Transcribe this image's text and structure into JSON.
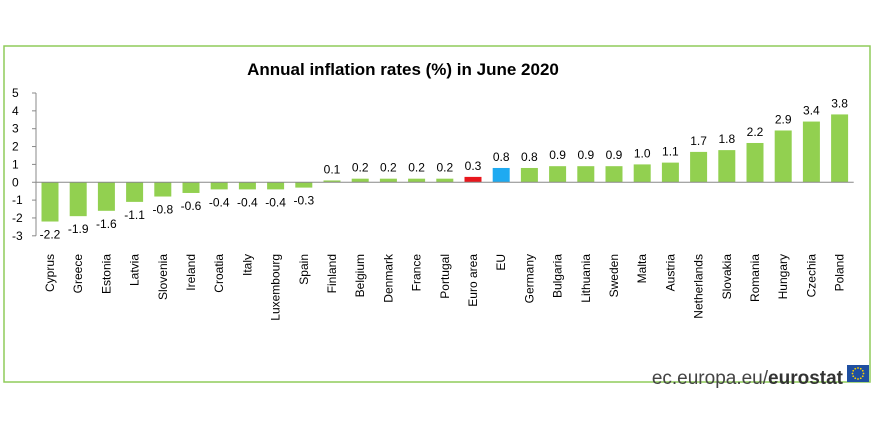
{
  "chart_data": {
    "type": "bar",
    "title": "Annual inflation rates (%) in June 2020",
    "xlabel": "",
    "ylabel": "",
    "ylim": [
      -3,
      5
    ],
    "yticks": [
      "5",
      "4",
      "3",
      "2",
      "1",
      "0",
      "-1",
      "-2",
      "-3"
    ],
    "grid": false,
    "categories": [
      "Cyprus",
      "Greece",
      "Estonia",
      "Latvia",
      "Slovenia",
      "Ireland",
      "Croatia",
      "Italy",
      "Luxembourg",
      "Spain",
      "Finland",
      "Belgium",
      "Denmark",
      "France",
      "Portugal",
      "Euro area",
      "EU",
      "Germany",
      "Bulgaria",
      "Lithuania",
      "Sweden",
      "Malta",
      "Austria",
      "Netherlands",
      "Slovakia",
      "Romania",
      "Hungary",
      "Czechia",
      "Poland"
    ],
    "values": [
      -2.2,
      -1.9,
      -1.6,
      -1.1,
      -0.8,
      -0.6,
      -0.4,
      -0.4,
      -0.4,
      -0.3,
      0.1,
      0.2,
      0.2,
      0.2,
      0.2,
      0.3,
      0.8,
      0.8,
      0.9,
      0.9,
      0.9,
      1.0,
      1.1,
      1.7,
      1.8,
      2.2,
      2.9,
      3.4,
      3.8
    ],
    "value_labels": [
      "-2.2",
      "-1.9",
      "-1.6",
      "-1.1",
      "-0.8",
      "-0.6",
      "-0.4",
      "-0.4",
      "-0.4",
      "-0.3",
      "0.1",
      "0.2",
      "0.2",
      "0.2",
      "0.2",
      "0.3",
      "0.8",
      "0.8",
      "0.9",
      "0.9",
      "0.9",
      "1.0",
      "1.1",
      "1.7",
      "1.8",
      "2.2",
      "2.9",
      "3.4",
      "3.8"
    ],
    "colors": {
      "default": "#92d050",
      "Euro area": "#e8171d",
      "EU": "#1eaaf1"
    }
  },
  "frame_color": "#8fcc5a",
  "source": {
    "domain": "ec.europa.eu/",
    "brand": "eurostat",
    "flag": "eu-flag-icon",
    "flag_color": "#1f4fa1",
    "star_color": "#ffd200"
  }
}
